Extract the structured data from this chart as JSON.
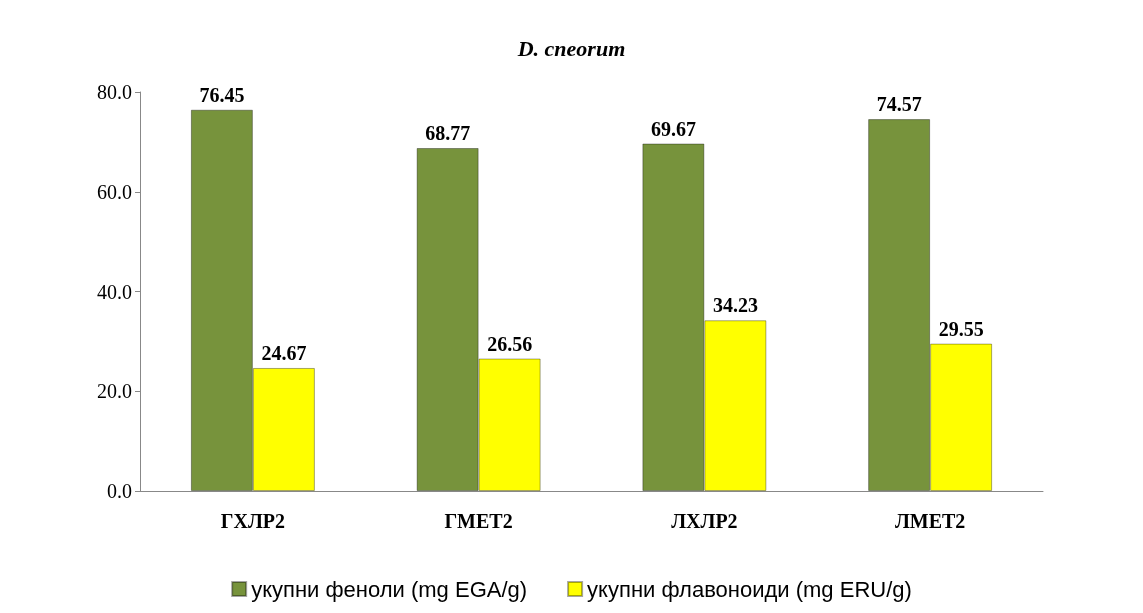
{
  "chart_data": {
    "type": "bar",
    "title": "D. cneorum",
    "categories": [
      "ГХЛР2",
      "ГМЕТ2",
      "ЛХЛР2",
      "ЛМЕТ2"
    ],
    "series": [
      {
        "name": "укупни феноли (mg EGA/g)",
        "color": "#77933c",
        "values": [
          76.45,
          68.77,
          69.67,
          74.57
        ]
      },
      {
        "name": "укупни флавоноиди (mg ERU/g)",
        "color": "#ffff00",
        "values": [
          24.67,
          26.56,
          34.23,
          29.55
        ]
      }
    ],
    "ylim": [
      0,
      80
    ],
    "yticks": [
      {
        "value": 0,
        "label": "0.0"
      },
      {
        "value": 20,
        "label": "20.0"
      },
      {
        "value": 40,
        "label": "40.0"
      },
      {
        "value": 60,
        "label": "60.0"
      },
      {
        "value": 80,
        "label": "80.0"
      }
    ],
    "data_labels": true,
    "grid": false,
    "legend": "bottom"
  }
}
